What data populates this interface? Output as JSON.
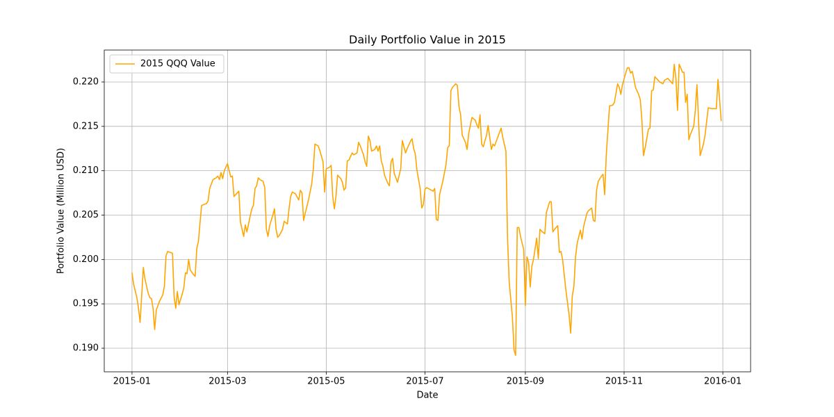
{
  "chart_data": {
    "type": "line",
    "title": "Daily Portfolio Value in 2015",
    "xlabel": "Date",
    "ylabel": "Portfolio Value (Million USD)",
    "xlim": [
      -17.15,
      382.15
    ],
    "xticks": [
      {
        "value": 0,
        "label": "2015-01"
      },
      {
        "value": 59,
        "label": "2015-03"
      },
      {
        "value": 120,
        "label": "2015-05"
      },
      {
        "value": 181,
        "label": "2015-07"
      },
      {
        "value": 243,
        "label": "2015-09"
      },
      {
        "value": 304,
        "label": "2015-11"
      },
      {
        "value": 365,
        "label": "2016-01"
      }
    ],
    "ylim": [
      0.18734,
      0.2236
    ],
    "yticks": [
      {
        "value": 0.19,
        "label": "0.190"
      },
      0.195,
      {
        "value": 0.2,
        "label": "0.200"
      },
      0.205,
      {
        "value": 0.21,
        "label": "0.210"
      },
      0.215,
      {
        "value": 0.22,
        "label": "0.220"
      }
    ],
    "grid": true,
    "legend": "upper left",
    "x": [
      0,
      1,
      3,
      4,
      5,
      7,
      8,
      10,
      11,
      12,
      13,
      14,
      15,
      17,
      19,
      20,
      21,
      22,
      25,
      26,
      27,
      28,
      29,
      31,
      32,
      33,
      34,
      35,
      36,
      38,
      39,
      40,
      41,
      42,
      43,
      46,
      47,
      48,
      50,
      52,
      53,
      54,
      55,
      56,
      57,
      59,
      61,
      62,
      63,
      65,
      66,
      67,
      69,
      70,
      71,
      73,
      74,
      75,
      76,
      77,
      78,
      79,
      81,
      82,
      83,
      84,
      85,
      87,
      88,
      89,
      90,
      91,
      93,
      94,
      96,
      97,
      98,
      99,
      101,
      103,
      104,
      105,
      106,
      107,
      109,
      111,
      112,
      113,
      115,
      116,
      118,
      119,
      120,
      122,
      123,
      124,
      125,
      126,
      127,
      129,
      130,
      131,
      132,
      133,
      134,
      136,
      137,
      139,
      140,
      141,
      143,
      144,
      145,
      146,
      147,
      148,
      150,
      151,
      152,
      153,
      154,
      155,
      156,
      158,
      159,
      160,
      161,
      162,
      163,
      164,
      166,
      167,
      169,
      170,
      172,
      173,
      174,
      175,
      176,
      178,
      179,
      180,
      181,
      182,
      184,
      186,
      187,
      188,
      189,
      190,
      192,
      194,
      195,
      196,
      197,
      198,
      200,
      201,
      202,
      203,
      204,
      206,
      207,
      208,
      210,
      212,
      213,
      214,
      215,
      216,
      217,
      219,
      220,
      222,
      223,
      224,
      225,
      228,
      229,
      231,
      232,
      233,
      235,
      236,
      237,
      238,
      239,
      240,
      242,
      243,
      244,
      245,
      246,
      247,
      248,
      250,
      251,
      252,
      253,
      255,
      256,
      258,
      259,
      260,
      261,
      263,
      264,
      265,
      266,
      268,
      270,
      271,
      272,
      273,
      274,
      275,
      277,
      278,
      279,
      281,
      282,
      284,
      285,
      286,
      287,
      288,
      290,
      291,
      292,
      293,
      295,
      297,
      298,
      300,
      301,
      302,
      303,
      305,
      306,
      307,
      308,
      309,
      310,
      311,
      313,
      314,
      315,
      316,
      317,
      318,
      319,
      320,
      321,
      322,
      323,
      324,
      326,
      328,
      329,
      331,
      333,
      334,
      335,
      336,
      337,
      338,
      339,
      340,
      341,
      342,
      343,
      344,
      345,
      347,
      348,
      349,
      351,
      353,
      354,
      356,
      358,
      360,
      361,
      362,
      363,
      364
    ],
    "series": [
      {
        "name": "2015 QQQ Value",
        "color": "#ffa500",
        "values": [
          0.1985,
          0.1972,
          0.1957,
          0.1945,
          0.1929,
          0.1991,
          0.1978,
          0.1962,
          0.1957,
          0.1956,
          0.1945,
          0.1921,
          0.1943,
          0.1953,
          0.196,
          0.197,
          0.2004,
          0.2009,
          0.2007,
          0.1958,
          0.1945,
          0.1964,
          0.1949,
          0.1961,
          0.1968,
          0.1985,
          0.1984,
          0.2,
          0.1988,
          0.1983,
          0.1981,
          0.2012,
          0.202,
          0.2041,
          0.2061,
          0.2063,
          0.2066,
          0.208,
          0.209,
          0.2092,
          0.2094,
          0.209,
          0.2098,
          0.2091,
          0.21,
          0.2108,
          0.2093,
          0.2094,
          0.2071,
          0.2075,
          0.2077,
          0.2042,
          0.2026,
          0.2039,
          0.2031,
          0.2049,
          0.2057,
          0.2061,
          0.208,
          0.2083,
          0.2092,
          0.209,
          0.2088,
          0.2081,
          0.2034,
          0.2026,
          0.2038,
          0.205,
          0.2057,
          0.2034,
          0.2025,
          0.2027,
          0.2034,
          0.2043,
          0.204,
          0.2057,
          0.2071,
          0.2076,
          0.2074,
          0.2067,
          0.2078,
          0.2075,
          0.2044,
          0.2052,
          0.2067,
          0.2085,
          0.2102,
          0.213,
          0.2128,
          0.2123,
          0.211,
          0.2076,
          0.2102,
          0.2104,
          0.2106,
          0.2071,
          0.2057,
          0.2071,
          0.2095,
          0.2091,
          0.2087,
          0.2078,
          0.2081,
          0.2111,
          0.2112,
          0.212,
          0.2118,
          0.212,
          0.2132,
          0.2128,
          0.2118,
          0.211,
          0.2105,
          0.2139,
          0.2134,
          0.2122,
          0.2124,
          0.2128,
          0.2122,
          0.2128,
          0.2111,
          0.2105,
          0.2095,
          0.2086,
          0.2083,
          0.211,
          0.2114,
          0.2097,
          0.2092,
          0.2087,
          0.2102,
          0.2134,
          0.212,
          0.2125,
          0.2133,
          0.2136,
          0.2125,
          0.2119,
          0.2101,
          0.208,
          0.2058,
          0.2062,
          0.2079,
          0.2081,
          0.2079,
          0.2077,
          0.208,
          0.2045,
          0.2044,
          0.2073,
          0.2088,
          0.2107,
          0.2126,
          0.2128,
          0.219,
          0.2194,
          0.2198,
          0.2196,
          0.2172,
          0.2163,
          0.214,
          0.2132,
          0.2124,
          0.2142,
          0.216,
          0.2157,
          0.2152,
          0.2148,
          0.2163,
          0.213,
          0.2127,
          0.214,
          0.2151,
          0.2124,
          0.213,
          0.2128,
          0.2133,
          0.2148,
          0.2138,
          0.2122,
          0.2024,
          0.1975,
          0.1935,
          0.1898,
          0.1892,
          0.2036,
          0.2036,
          0.2026,
          0.2011,
          0.1948,
          0.2003,
          0.1997,
          0.1969,
          0.1992,
          0.2,
          0.2024,
          0.2001,
          0.2034,
          0.2032,
          0.2029,
          0.2053,
          0.2065,
          0.2065,
          0.2031,
          0.2034,
          0.2038,
          0.2008,
          0.2009,
          0.2,
          0.1966,
          0.1938,
          0.1917,
          0.1959,
          0.197,
          0.2003,
          0.2018,
          0.2033,
          0.2023,
          0.2037,
          0.2052,
          0.2055,
          0.2058,
          0.2044,
          0.2043,
          0.2078,
          0.2088,
          0.2094,
          0.2096,
          0.2073,
          0.2118,
          0.2173,
          0.2174,
          0.2177,
          0.2198,
          0.2194,
          0.2186,
          0.2197,
          0.221,
          0.2216,
          0.2216,
          0.221,
          0.2212,
          0.2204,
          0.2194,
          0.2186,
          0.218,
          0.2157,
          0.2117,
          0.2126,
          0.2136,
          0.2147,
          0.2148,
          0.219,
          0.2191,
          0.2206,
          0.2204,
          0.22,
          0.2198,
          0.2202,
          0.2204,
          0.22,
          0.2198,
          0.222,
          0.2204,
          0.2168,
          0.222,
          0.2216,
          0.2211,
          0.2211,
          0.2177,
          0.2186,
          0.2135,
          0.2141,
          0.215,
          0.2168,
          0.2197,
          0.2117,
          0.213,
          0.214,
          0.2171,
          0.217,
          0.217,
          0.217,
          0.2203,
          0.218,
          0.2156
        ]
      }
    ]
  }
}
